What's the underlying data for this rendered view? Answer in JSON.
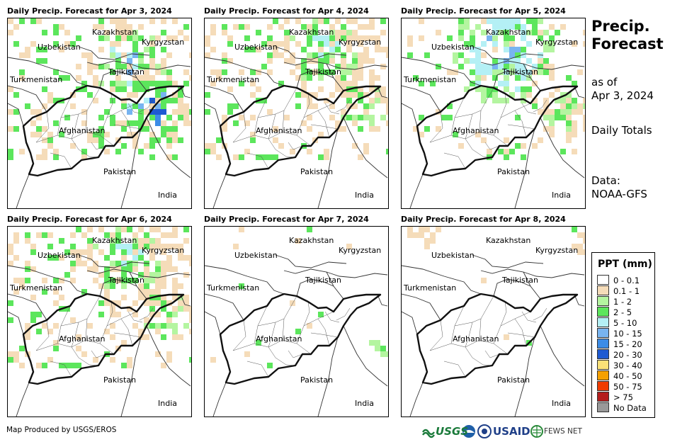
{
  "panels": [
    {
      "title": "Daily Precip. Forecast for Apr 3, 2024",
      "intensity": "high"
    },
    {
      "title": "Daily Precip. Forecast for Apr 4, 2024",
      "intensity": "mid"
    },
    {
      "title": "Daily Precip. Forecast for Apr 5, 2024",
      "intensity": "north"
    },
    {
      "title": "Daily Precip. Forecast for Apr 6, 2024",
      "intensity": "mid"
    },
    {
      "title": "Daily Precip. Forecast for Apr 7, 2024",
      "intensity": "low"
    },
    {
      "title": "Daily Precip. Forecast for Apr 8, 2024",
      "intensity": "verylow"
    }
  ],
  "map_labels": {
    "uzbekistan": "Uzbekistan",
    "kazakhstan": "Kazakhstan",
    "kyrgyzstan": "Kyrgyzstan",
    "tajikistan": "Tajikistan",
    "turkmenistan": "Turkmenistan",
    "afghanistan": "Afghanistan",
    "pakistan": "Pakistan",
    "india": "India"
  },
  "side": {
    "title_line1": "Precip.",
    "title_line2": "Forecast",
    "asof_line1": "as of",
    "asof_line2": "Apr 3, 2024",
    "totals": "Daily Totals",
    "data_line1": "Data:",
    "data_line2": "NOAA-GFS"
  },
  "legend": {
    "title": "PPT (mm)",
    "items": [
      {
        "label": "0 - 0.1",
        "color": "#ffffff"
      },
      {
        "label": "0.1 - 1",
        "color": "#f5dcb9"
      },
      {
        "label": "1 - 2",
        "color": "#b4f5a0"
      },
      {
        "label": "2 - 5",
        "color": "#5ce65c"
      },
      {
        "label": "5 - 10",
        "color": "#b4f0f5"
      },
      {
        "label": "10 - 15",
        "color": "#78b4f0"
      },
      {
        "label": "15 - 20",
        "color": "#3c8ce6"
      },
      {
        "label": "20 - 30",
        "color": "#1e5ad2"
      },
      {
        "label": "30 - 40",
        "color": "#fae178"
      },
      {
        "label": "40 - 50",
        "color": "#f5a000"
      },
      {
        "label": "50 - 75",
        "color": "#f03c00"
      },
      {
        "label": "> 75",
        "color": "#b41e1e"
      },
      {
        "label": "No Data",
        "color": "#999999"
      }
    ]
  },
  "credit": "Map Produced by USGS/EROS",
  "logos": {
    "usgs": "USGS",
    "usaid": "USAID",
    "fewsnet": "FEWS NET"
  }
}
